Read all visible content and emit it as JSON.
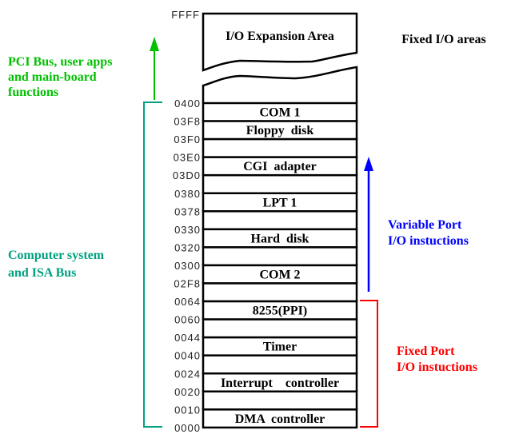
{
  "top_address": "FFFF",
  "expansion_label": "I/O  Expansion  Area",
  "fixed_areas_label": "Fixed I/O areas",
  "addresses": [
    "0400",
    "03F8",
    "03F0",
    "03E0",
    "03D0",
    "0380",
    "0378",
    "0330",
    "0320",
    "0300",
    "02F8",
    "0064",
    "0060",
    "0044",
    "0040",
    "0024",
    "0020",
    "0010",
    "0000"
  ],
  "rows": [
    "COM 1",
    "Floppy  disk",
    "",
    "CGI  adapter",
    "",
    "LPT 1",
    "",
    "Hard  disk",
    "",
    "COM 2",
    "",
    "8255(PPI)",
    "",
    "Timer",
    "",
    "Interrupt    controller",
    "",
    "DMA  controller"
  ],
  "pci_label": [
    "PCI Bus, user apps",
    "and  main-board",
    "functions"
  ],
  "isa_label": [
    "Computer   system",
    "and ISA Bus"
  ],
  "variable_label": [
    "Variable Port",
    "I/O    instuctions"
  ],
  "fixed_label": [
    "Fixed Port",
    "I/O    instuctions"
  ],
  "colors": {
    "pci": "#00c000",
    "isa": "#00a080",
    "variable": "#0000ff",
    "fixed": "#ff0000"
  }
}
